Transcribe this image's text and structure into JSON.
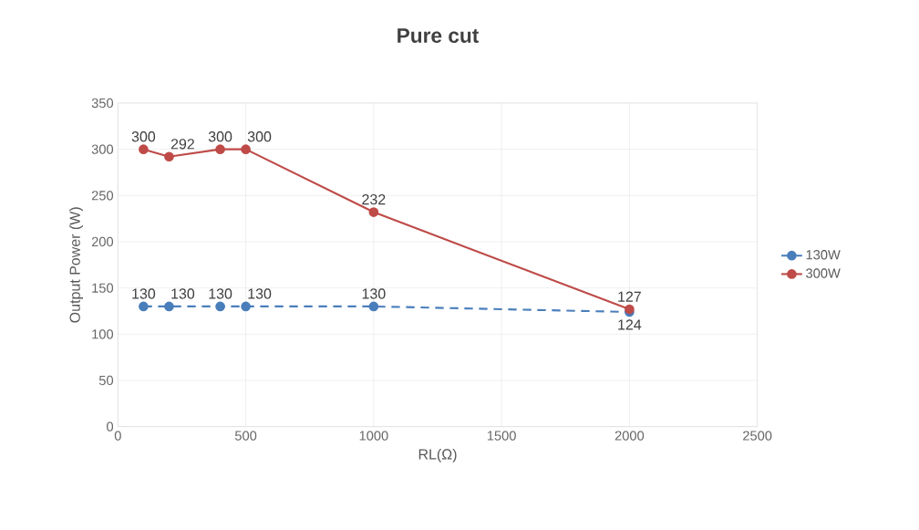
{
  "chart_data": {
    "type": "line",
    "title": "Pure cut",
    "xlabel": "RL(Ω)",
    "ylabel": "Output Power (W)",
    "x": [
      100,
      200,
      400,
      500,
      1000,
      2000
    ],
    "series": [
      {
        "name": "130W",
        "color": "#4a7ebb",
        "values": [
          130,
          130,
          130,
          130,
          130,
          124
        ],
        "line_style": "dashed",
        "value_labels": [
          "130",
          "130",
          "130",
          "130",
          "130",
          "124"
        ]
      },
      {
        "name": "300W",
        "color": "#be4b48",
        "values": [
          300,
          292,
          300,
          300,
          232,
          127
        ],
        "line_style": "solid",
        "value_labels": [
          "300",
          "292",
          "300",
          "300",
          "232",
          "127"
        ]
      }
    ],
    "xlim": [
      0,
      2500
    ],
    "xticks": [
      0,
      500,
      1000,
      1500,
      2000,
      2500
    ],
    "ylim": [
      0,
      350
    ],
    "yticks": [
      0,
      50,
      100,
      150,
      200,
      250,
      300,
      350
    ],
    "grid": true,
    "legend": "right",
    "marker": "circle"
  }
}
